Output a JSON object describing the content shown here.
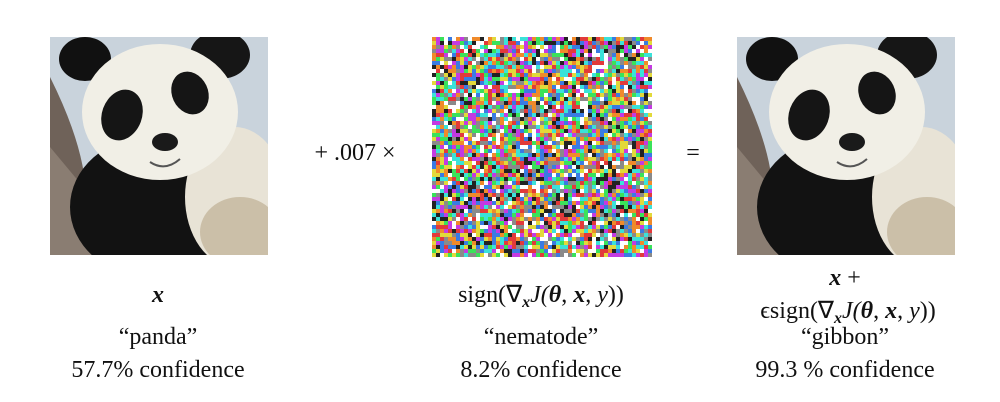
{
  "figure": {
    "operator_plus": "+ .007 ×",
    "operator_equals": "=",
    "panels": [
      {
        "formula": [
          "x"
        ],
        "label": "“panda”",
        "confidence": "57.7% confidence"
      },
      {
        "formula": [
          "sign(∇",
          "x",
          "J(",
          "θ",
          ", ",
          "x",
          ", ",
          "y",
          "))"
        ],
        "label": "“nematode”",
        "confidence": "8.2% confidence"
      },
      {
        "formula_line1": [
          "x",
          " +"
        ],
        "formula": [
          "ϵsign(∇",
          "x",
          "J(",
          "θ",
          ", ",
          "x",
          ", ",
          "y",
          "))"
        ],
        "label": "“gibbon”",
        "confidence": "99.3 % confidence"
      }
    ]
  }
}
